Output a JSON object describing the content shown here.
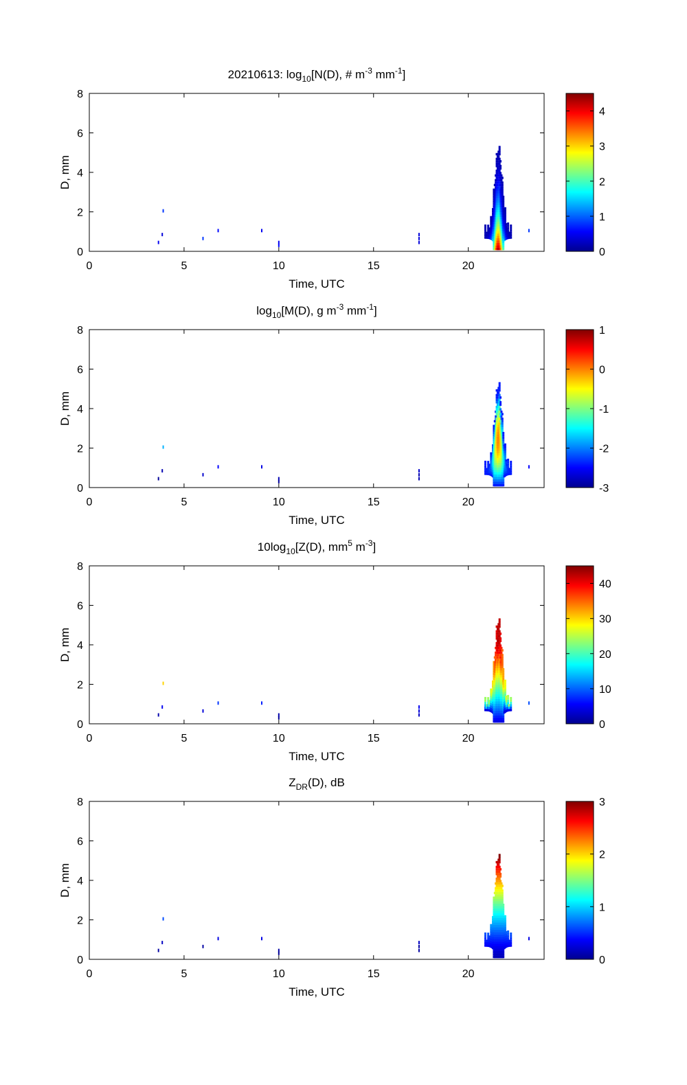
{
  "chart_data": [
    {
      "type": "heatmap",
      "title_parts": {
        "pre": "20210613: log",
        "sub": "10",
        "mid1": "[N(D), # m",
        "sup1": "-3",
        "mid2": " mm",
        "sup2": "-1",
        "post": "]"
      },
      "xlabel": "Time, UTC",
      "ylabel": "D, mm",
      "xlim": [
        0,
        24
      ],
      "ylim": [
        0,
        8
      ],
      "xticks": [
        0,
        5,
        10,
        15,
        20
      ],
      "yticks": [
        0,
        2,
        4,
        6,
        8
      ],
      "colorbar": {
        "min": 0,
        "max": 4.5,
        "ticks": [
          0,
          1,
          2,
          3,
          4
        ]
      },
      "cells": [
        {
          "t": 3.65,
          "d": 0.45,
          "v": 0.5
        },
        {
          "t": 3.85,
          "d": 0.85,
          "v": 0.4
        },
        {
          "t": 3.9,
          "d": 2.05,
          "v": 0.8
        },
        {
          "t": 6.0,
          "d": 0.65,
          "v": 0.8
        },
        {
          "t": 6.8,
          "d": 1.05,
          "v": 0.6
        },
        {
          "t": 9.1,
          "d": 1.05,
          "v": 0.5
        },
        {
          "t": 10.0,
          "d": 0.3,
          "v": 0.6
        },
        {
          "t": 10.0,
          "d": 0.45,
          "v": 0.5
        },
        {
          "t": 17.4,
          "d": 0.45,
          "v": 0.4
        },
        {
          "t": 17.4,
          "d": 0.65,
          "v": 0.4
        },
        {
          "t": 17.4,
          "d": 0.85,
          "v": 0.4
        },
        {
          "t": 23.2,
          "d": 1.05,
          "v": 0.8
        }
      ]
    },
    {
      "type": "heatmap",
      "title_parts": {
        "pre": "log",
        "sub": "10",
        "mid1": "[M(D), g m",
        "sup1": "-3",
        "mid2": " mm",
        "sup2": "-1",
        "post": "]"
      },
      "xlabel": "Time, UTC",
      "ylabel": "D, mm",
      "xlim": [
        0,
        24
      ],
      "ylim": [
        0,
        8
      ],
      "xticks": [
        0,
        5,
        10,
        15,
        20
      ],
      "yticks": [
        0,
        2,
        4,
        6,
        8
      ],
      "colorbar": {
        "min": -3,
        "max": 1,
        "ticks": [
          1,
          0,
          -1,
          -2,
          -3
        ]
      },
      "cells": [
        {
          "t": 3.65,
          "d": 0.45,
          "v": -2.9
        },
        {
          "t": 3.85,
          "d": 0.85,
          "v": -2.8
        },
        {
          "t": 3.9,
          "d": 2.05,
          "v": -1.8
        },
        {
          "t": 6.0,
          "d": 0.65,
          "v": -2.7
        },
        {
          "t": 6.8,
          "d": 1.05,
          "v": -2.5
        },
        {
          "t": 9.1,
          "d": 1.05,
          "v": -2.6
        },
        {
          "t": 10.0,
          "d": 0.3,
          "v": -2.9
        },
        {
          "t": 10.0,
          "d": 0.45,
          "v": -2.8
        },
        {
          "t": 17.4,
          "d": 0.45,
          "v": -2.8
        },
        {
          "t": 17.4,
          "d": 0.65,
          "v": -2.8
        },
        {
          "t": 17.4,
          "d": 0.85,
          "v": -2.7
        },
        {
          "t": 23.2,
          "d": 1.05,
          "v": -2.5
        }
      ]
    },
    {
      "type": "heatmap",
      "title_parts": {
        "pre": "10log",
        "sub": "10",
        "mid1": "[Z(D),  mm",
        "sup1": "5",
        "mid2": " m",
        "sup2": "-3",
        "post": "]"
      },
      "xlabel": "Time, UTC",
      "ylabel": "D, mm",
      "xlim": [
        0,
        24
      ],
      "ylim": [
        0,
        8
      ],
      "xticks": [
        0,
        5,
        10,
        15,
        20
      ],
      "yticks": [
        0,
        2,
        4,
        6,
        8
      ],
      "colorbar": {
        "min": 0,
        "max": 45,
        "ticks": [
          0,
          10,
          20,
          30,
          40
        ]
      },
      "cells": [
        {
          "t": 3.65,
          "d": 0.45,
          "v": 2
        },
        {
          "t": 3.85,
          "d": 0.85,
          "v": 5
        },
        {
          "t": 3.9,
          "d": 2.05,
          "v": 30
        },
        {
          "t": 6.0,
          "d": 0.65,
          "v": 4
        },
        {
          "t": 6.8,
          "d": 1.05,
          "v": 8
        },
        {
          "t": 9.1,
          "d": 1.05,
          "v": 7
        },
        {
          "t": 10.0,
          "d": 0.3,
          "v": 1
        },
        {
          "t": 10.0,
          "d": 0.45,
          "v": 2
        },
        {
          "t": 17.4,
          "d": 0.45,
          "v": 3
        },
        {
          "t": 17.4,
          "d": 0.65,
          "v": 4
        },
        {
          "t": 17.4,
          "d": 0.85,
          "v": 5
        },
        {
          "t": 23.2,
          "d": 1.05,
          "v": 9
        }
      ]
    },
    {
      "type": "heatmap",
      "title_parts": {
        "pre": "Z",
        "sub": "DR",
        "mid1": "(D), dB",
        "sup1": "",
        "mid2": "",
        "sup2": "",
        "post": ""
      },
      "xlabel": "Time, UTC",
      "ylabel": "D, mm",
      "xlim": [
        0,
        24
      ],
      "ylim": [
        0,
        8
      ],
      "xticks": [
        0,
        5,
        10,
        15,
        20
      ],
      "yticks": [
        0,
        2,
        4,
        6,
        8
      ],
      "colorbar": {
        "min": 0,
        "max": 3,
        "ticks": [
          0,
          1,
          2,
          3
        ]
      },
      "cells": [
        {
          "t": 3.65,
          "d": 0.45,
          "v": 0.1
        },
        {
          "t": 3.85,
          "d": 0.85,
          "v": 0.2
        },
        {
          "t": 3.9,
          "d": 2.05,
          "v": 0.6
        },
        {
          "t": 6.0,
          "d": 0.65,
          "v": 0.1
        },
        {
          "t": 6.8,
          "d": 1.05,
          "v": 0.3
        },
        {
          "t": 9.1,
          "d": 1.05,
          "v": 0.3
        },
        {
          "t": 10.0,
          "d": 0.3,
          "v": 0.05
        },
        {
          "t": 10.0,
          "d": 0.45,
          "v": 0.1
        },
        {
          "t": 17.4,
          "d": 0.45,
          "v": 0.1
        },
        {
          "t": 17.4,
          "d": 0.65,
          "v": 0.1
        },
        {
          "t": 17.4,
          "d": 0.85,
          "v": 0.2
        },
        {
          "t": 23.2,
          "d": 1.05,
          "v": 0.3
        }
      ]
    }
  ]
}
